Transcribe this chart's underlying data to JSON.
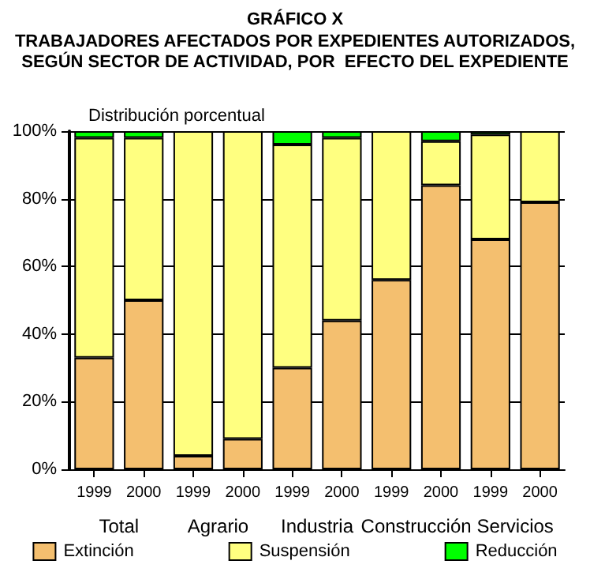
{
  "chart_data": {
    "type": "bar",
    "stacked": true,
    "title": "GRÁFICO X",
    "subtitle": "TRABAJADORES AFECTADOS POR EXPEDIENTES AUTORIZADOS,\nSEGÚN SECTOR DE ACTIVIDAD, POR  EFECTO DEL EXPEDIENTE",
    "ylabel": "Distribución porcentual",
    "categories": [
      "1999",
      "2000",
      "1999",
      "2000",
      "1999",
      "2000",
      "1999",
      "2000",
      "1999",
      "2000"
    ],
    "annotations": [
      "Total",
      "Agrario",
      "Industria",
      "Construcción",
      "Servicios"
    ],
    "series": [
      {
        "name": "Extinción",
        "color": "#f4bf6f",
        "values": [
          33,
          50,
          4,
          9,
          30,
          44,
          56,
          84,
          68,
          79
        ]
      },
      {
        "name": "Suspensión",
        "color": "#ffff80",
        "values": [
          65,
          48,
          96,
          91,
          66,
          54,
          44,
          13,
          31,
          21
        ]
      },
      {
        "name": "Reducción",
        "color": "#00ff00",
        "values": [
          2,
          2,
          0,
          0,
          4,
          2,
          0,
          3,
          1,
          0
        ]
      }
    ],
    "ylim": [
      0,
      100
    ],
    "yticks": [
      {
        "value": 0,
        "label": "0%"
      },
      {
        "value": 20,
        "label": "20%"
      },
      {
        "value": 40,
        "label": "40%"
      },
      {
        "value": 60,
        "label": "60%"
      },
      {
        "value": 80,
        "label": "80%"
      },
      {
        "value": 100,
        "label": "100%"
      }
    ],
    "grid": "y",
    "legend": "bottom"
  }
}
